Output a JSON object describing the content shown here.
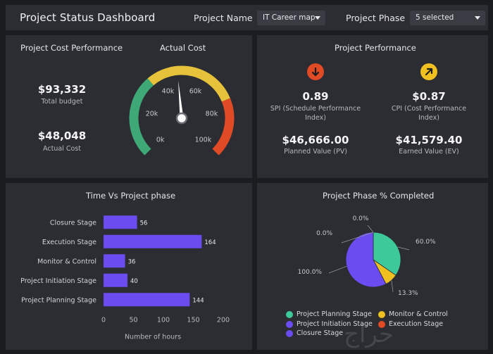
{
  "header": {
    "title": "Project Status Dashboard",
    "project_name_label": "Project Name",
    "project_name_value": "IT Career map",
    "project_phase_label": "Project Phase",
    "project_phase_value": "5 selected"
  },
  "cost_panel": {
    "title": "Project Cost Performance",
    "total_budget_value": "$93,332",
    "total_budget_label": "Total budget",
    "actual_cost_value": "$48,048",
    "actual_cost_label": "Actual Cost"
  },
  "gauge": {
    "title": "Actual Cost",
    "ticks": [
      "0k",
      "20k",
      "40k",
      "60k",
      "80k",
      "100k"
    ],
    "min": 0,
    "max": 100,
    "value": 48.048,
    "colors": [
      "#3fa877",
      "#e6c23a",
      "#e04a24"
    ]
  },
  "performance": {
    "title": "Project Performance",
    "spi_value": "0.89",
    "spi_label": "SPI (Schedule Performance Index)",
    "spi_icon": "arrow-down-icon",
    "spi_color": "#e04a24",
    "cpi_value": "$0.87",
    "cpi_label": "CPI (Cost Performance Index)",
    "cpi_icon": "arrow-up-right-icon",
    "cpi_color": "#f0c020",
    "pv_value": "$46,666.00",
    "pv_label": "Planned Value (PV)",
    "ev_value": "$41,579.40",
    "ev_label": "Earned Value (EV)"
  },
  "bar_chart": {
    "title": "Time Vs Project phase",
    "xlabel": "Number of hours",
    "bar_color": "#6a4cf0",
    "chart_data": {
      "type": "bar",
      "orientation": "horizontal",
      "categories": [
        "Closure Stage",
        "Execution Stage",
        "Monitor & Control",
        "Project Initiation Stage",
        "Project Planning Stage"
      ],
      "values": [
        56,
        164,
        36,
        40,
        144
      ],
      "xlabel": "Number of hours",
      "xlim": [
        0,
        200
      ],
      "xticks": [
        "0",
        "50",
        "100",
        "150",
        "200"
      ]
    }
  },
  "pie_chart": {
    "title": "Project Phase % Completed",
    "chart_data": {
      "type": "pie",
      "slices": [
        {
          "name": "Project Planning Stage",
          "value": 60.0,
          "label": "60.0%",
          "color": "#3ec99a"
        },
        {
          "name": "Monitor & Control",
          "value": 13.3,
          "label": "13.3%",
          "color": "#f0c020"
        },
        {
          "name": "Project Initiation Stage",
          "value": 100.0,
          "label": "100.0%",
          "color": "#6a4cf0"
        },
        {
          "name": "Closure Stage",
          "value": 0.0,
          "label": "0.0%",
          "color": "#6a4cf0"
        },
        {
          "name": "Execution Stage",
          "value": 0.0,
          "label": "0.0%",
          "color": "#e04a24"
        }
      ],
      "legend": [
        {
          "name": "Project Planning Stage",
          "color": "#3ec99a"
        },
        {
          "name": "Monitor & Control",
          "color": "#f0c020"
        },
        {
          "name": "Project Initiation Stage",
          "color": "#6a4cf0"
        },
        {
          "name": "Execution Stage",
          "color": "#e04a24"
        },
        {
          "name": "Closure Stage",
          "color": "#6a4cf0"
        }
      ],
      "legend_position": "bottom"
    }
  }
}
